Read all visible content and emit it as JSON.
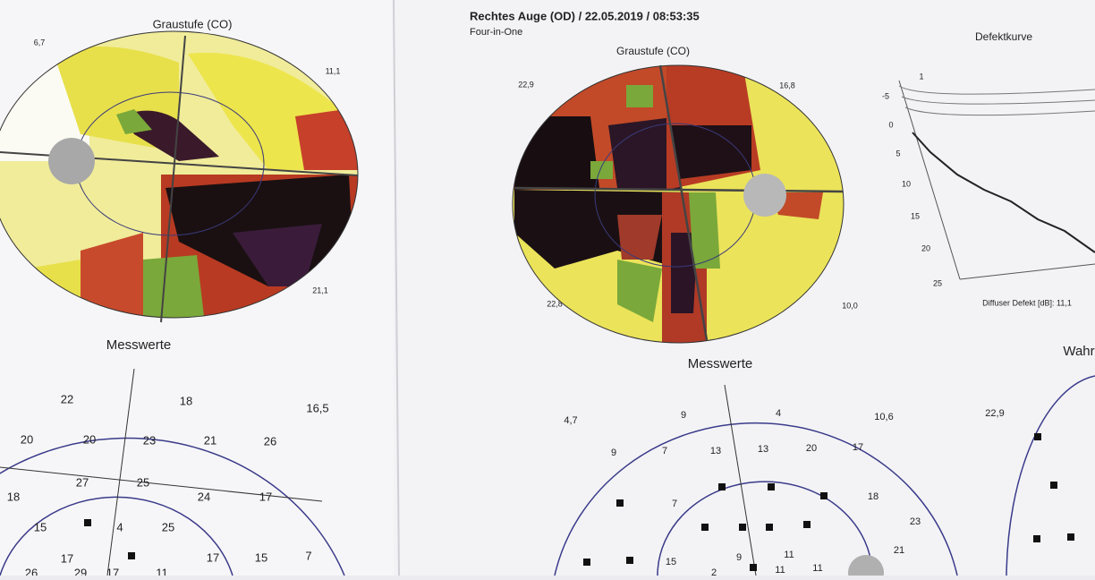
{
  "left_sheet": {
    "map_title": "Graustufe (CO)",
    "corners": [
      "6,7",
      "11,1",
      "21,1"
    ],
    "values_title": "Messwerte",
    "values": [
      "22",
      "18",
      "16,5",
      "20",
      "20",
      "23",
      "21",
      "26",
      "18",
      "27",
      "25",
      "24",
      "17",
      "15",
      "4",
      "25",
      "17",
      "17",
      "15",
      "7",
      "26",
      "29",
      "17",
      "11"
    ]
  },
  "middle_sheet": {
    "header": "Rechtes Auge (OD) / 22.05.2019 / 08:53:35",
    "subheader": "Four-in-One",
    "map_title": "Graustufe (CO)",
    "corners": [
      "22,9",
      "16,8",
      "22,8",
      "10,0"
    ],
    "values_title": "Messwerte",
    "values": [
      "4,7",
      "9",
      "4",
      "10,6",
      "9",
      "7",
      "13",
      "13",
      "20",
      "17",
      "7",
      "18",
      "23",
      "15",
      "9",
      "11",
      "21",
      "2",
      "11",
      "11"
    ]
  },
  "right_sheet": {
    "curve_title": "Defektkurve",
    "curve_axis": [
      "1",
      "-5",
      "0",
      "5",
      "10",
      "15",
      "20",
      "25"
    ],
    "diffuse_defect": "Diffuser Defekt [dB]: 11,1",
    "panel_title": "Wahr",
    "corner": "22,9"
  }
}
